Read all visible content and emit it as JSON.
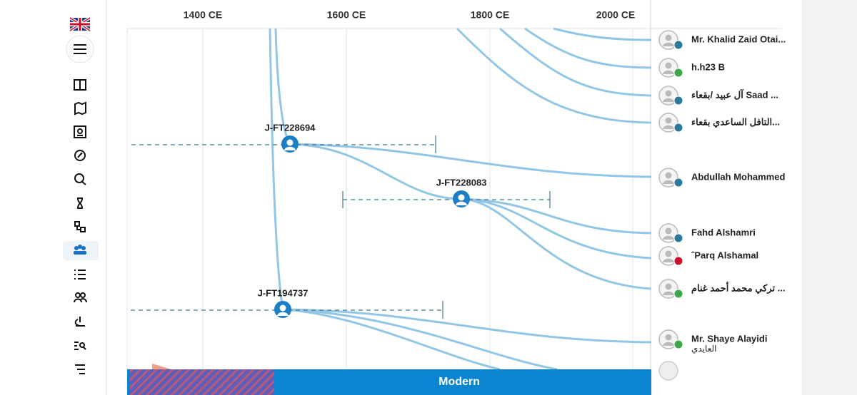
{
  "timeline": {
    "ticks": [
      "1400 CE",
      "1600 CE",
      "1800 CE",
      "2000 CE"
    ],
    "nodes": [
      "J-FT228694",
      "J-FT228083",
      "J-FT194737"
    ],
    "people": [
      {
        "name": "Mr. Khalid Zaid Otai..."
      },
      {
        "name": "h.h23 B"
      },
      {
        "name": "آل عبيد /بقعاء Saad ..."
      },
      {
        "name": "التافل الساعدي بقعاء..."
      },
      {
        "name": "Abdullah Mohammed"
      },
      {
        "name": "Fahd Alshamri"
      },
      {
        "name": "ˆParq Alshamal"
      },
      {
        "name": "تركي محمد أحمد غنام ..."
      },
      {
        "name": "Mr. Shaye Alayidi",
        "sub": "العايدي"
      }
    ],
    "period": "Modern"
  }
}
